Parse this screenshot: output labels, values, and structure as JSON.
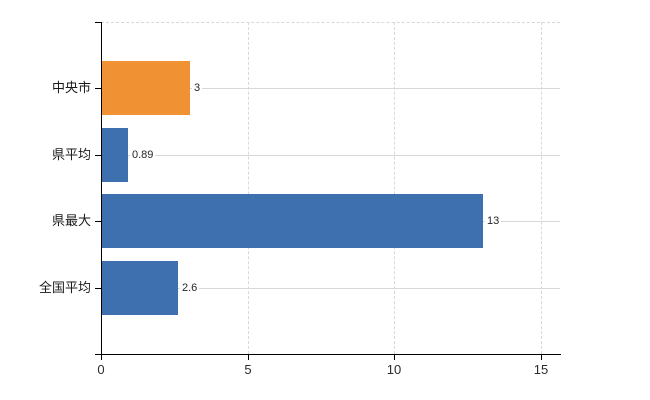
{
  "chart_data": {
    "type": "bar",
    "orientation": "horizontal",
    "title": "",
    "xlabel": "",
    "ylabel": "",
    "categories": [
      "中央市",
      "県平均",
      "県最大",
      "全国平均"
    ],
    "values": [
      3,
      0.89,
      13,
      2.6
    ],
    "value_labels": [
      "3",
      "0.89",
      "13",
      "2.6"
    ],
    "bar_colors": [
      "#F09134",
      "#3E6FAE",
      "#3E6FAE",
      "#3E6FAE"
    ],
    "xlim": [
      0,
      15
    ],
    "x_ticks": [
      0,
      5,
      10,
      15
    ],
    "x_tick_labels": [
      "0",
      "5",
      "10",
      "15"
    ],
    "legend": "none",
    "grid": {
      "vertical_gridlines": "dashed",
      "top_border": "dashed",
      "category_leader_lines": "solid"
    }
  },
  "style": {
    "background_color": "#FFFFFF",
    "axis_color": "#000000",
    "grid_color": "#D8D8D8",
    "category_label_color": "#1A1A1A",
    "value_label_color": "#262626",
    "tick_label_color": "#2B2B2B",
    "bar_blue": "#3E6FAE",
    "bar_orange": "#F09134"
  }
}
